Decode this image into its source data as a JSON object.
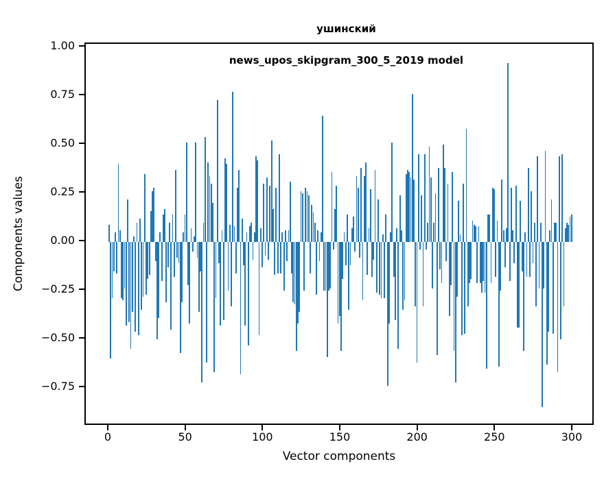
{
  "figure": {
    "title_line1": "ушинский",
    "title_line2": "news_upos_skipgram_300_5_2019 model",
    "xlabel": "Vector components",
    "ylabel": "Components values"
  },
  "chart_data": {
    "type": "bar",
    "title": "ушинский",
    "subtitle": "news_upos_skipgram_300_5_2019 model",
    "xlabel": "Vector components",
    "ylabel": "Components values",
    "grid": false,
    "legend": null,
    "bar_color": "#1f77b4",
    "x_start": 0,
    "n_components": 300,
    "bar_width_units": 0.8,
    "xlim": [
      -15.1,
      314.2
    ],
    "ylim": [
      -0.947,
      1.018
    ],
    "xticks": {
      "values": [
        0,
        50,
        100,
        150,
        200,
        250,
        300
      ],
      "labels": [
        "0",
        "50",
        "100",
        "150",
        "200",
        "250",
        "300"
      ]
    },
    "yticks": {
      "values": [
        1.0,
        0.75,
        0.5,
        0.25,
        0.0,
        -0.25,
        -0.5,
        -0.75
      ],
      "labels": [
        "1.00",
        "0.75",
        "0.50",
        "0.25",
        "0.00",
        "−0.25",
        "−0.50",
        "−0.75"
      ]
    },
    "values": [
      0.09,
      -0.6,
      -0.29,
      -0.15,
      0.05,
      -0.16,
      0.4,
      0.06,
      -0.29,
      -0.3,
      -0.24,
      -0.43,
      0.22,
      -0.41,
      -0.55,
      -0.36,
      0.03,
      -0.46,
      0.1,
      -0.48,
      0.12,
      -0.35,
      -0.28,
      0.35,
      -0.27,
      -0.19,
      -0.17,
      0.16,
      0.26,
      0.28,
      -0.1,
      -0.5,
      -0.39,
      0.05,
      -0.2,
      0.14,
      0.17,
      -0.31,
      -0.13,
      0.1,
      -0.45,
      0.14,
      -0.18,
      0.37,
      -0.08,
      -0.11,
      -0.57,
      -0.31,
      0.05,
      0.14,
      0.51,
      -0.22,
      -0.42,
      0.07,
      -0.05,
      0.03,
      0.51,
      -0.08,
      -0.36,
      -0.15,
      -0.72,
      0.1,
      0.54,
      -0.62,
      0.41,
      0.34,
      0.3,
      0.2,
      -0.67,
      -0.29,
      0.73,
      -0.11,
      -0.43,
      0.06,
      -0.4,
      0.43,
      0.4,
      -0.25,
      0.09,
      -0.33,
      0.77,
      0.08,
      -0.16,
      0.28,
      0.37,
      -0.68,
      0.12,
      -0.12,
      -0.43,
      0.05,
      -0.53,
      0.08,
      0.1,
      -0.09,
      0.05,
      0.44,
      0.42,
      -0.48,
      0.07,
      -0.13,
      0.3,
      -0.07,
      0.33,
      -0.09,
      0.29,
      0.52,
      0.17,
      -0.17,
      0.28,
      -0.16,
      0.45,
      -0.16,
      0.05,
      -0.25,
      0.06,
      -0.1,
      0.06,
      0.31,
      -0.16,
      -0.31,
      -0.32,
      -0.56,
      -0.42,
      -0.36,
      0.26,
      0.25,
      -0.25,
      0.28,
      0.26,
      0.24,
      -0.16,
      0.19,
      0.15,
      0.1,
      -0.27,
      0.06,
      -0.1,
      0.05,
      0.65,
      -0.25,
      -0.25,
      -0.59,
      -0.25,
      -0.24,
      0.36,
      -0.04,
      0.17,
      0.29,
      -0.42,
      -0.38,
      -0.56,
      -0.19,
      0.05,
      -0.12,
      0.14,
      -0.35,
      -0.12,
      0.07,
      0.13,
      -0.05,
      0.34,
      0.28,
      -0.08,
      0.38,
      -0.3,
      0.34,
      0.41,
      -0.17,
      0.07,
      0.27,
      -0.18,
      -0.09,
      0.37,
      -0.26,
      0.22,
      -0.27,
      -0.29,
      0.04,
      -0.29,
      0.14,
      -0.74,
      -0.42,
      0.05,
      0.51,
      -0.18,
      -0.4,
      0.07,
      -0.55,
      0.24,
      0.06,
      -0.35,
      -0.3,
      0.35,
      0.37,
      0.36,
      0.33,
      0.76,
      0.32,
      -0.33,
      -0.62,
      0.45,
      -0.04,
      0.24,
      -0.33,
      0.45,
      -0.04,
      0.1,
      0.49,
      0.33,
      -0.24,
      0.1,
      0.25,
      -0.58,
      0.38,
      -0.14,
      -0.21,
      0.5,
      0.38,
      -0.1,
      0.3,
      -0.38,
      -0.22,
      0.36,
      -0.56,
      -0.72,
      -0.28,
      0.21,
      0.04,
      -0.48,
      0.3,
      -0.47,
      0.58,
      -0.33,
      -0.21,
      -0.19,
      0.11,
      0.09,
      0.08,
      -0.21,
      0.08,
      -0.21,
      -0.26,
      -0.2,
      -0.26,
      -0.65,
      0.14,
      0.14,
      -0.21,
      0.28,
      0.27,
      -0.18,
      0.11,
      -0.64,
      -0.25,
      0.32,
      0.06,
      -0.13,
      0.07,
      0.92,
      -0.2,
      0.28,
      0.06,
      -0.11,
      0.29,
      -0.44,
      -0.44,
      0.21,
      -0.15,
      -0.56,
      0.05,
      -0.18,
      0.38,
      -0.18,
      0.26,
      -0.11,
      0.1,
      -0.33,
      0.44,
      -0.24,
      0.1,
      -0.85,
      -0.24,
      0.47,
      -0.63,
      -0.46,
      0.06,
      0.22,
      -0.47,
      0.1,
      0.1,
      -0.67,
      0.44,
      -0.5,
      0.45,
      -0.33,
      0.07,
      0.1,
      0.09,
      0.13,
      0.14
    ]
  }
}
